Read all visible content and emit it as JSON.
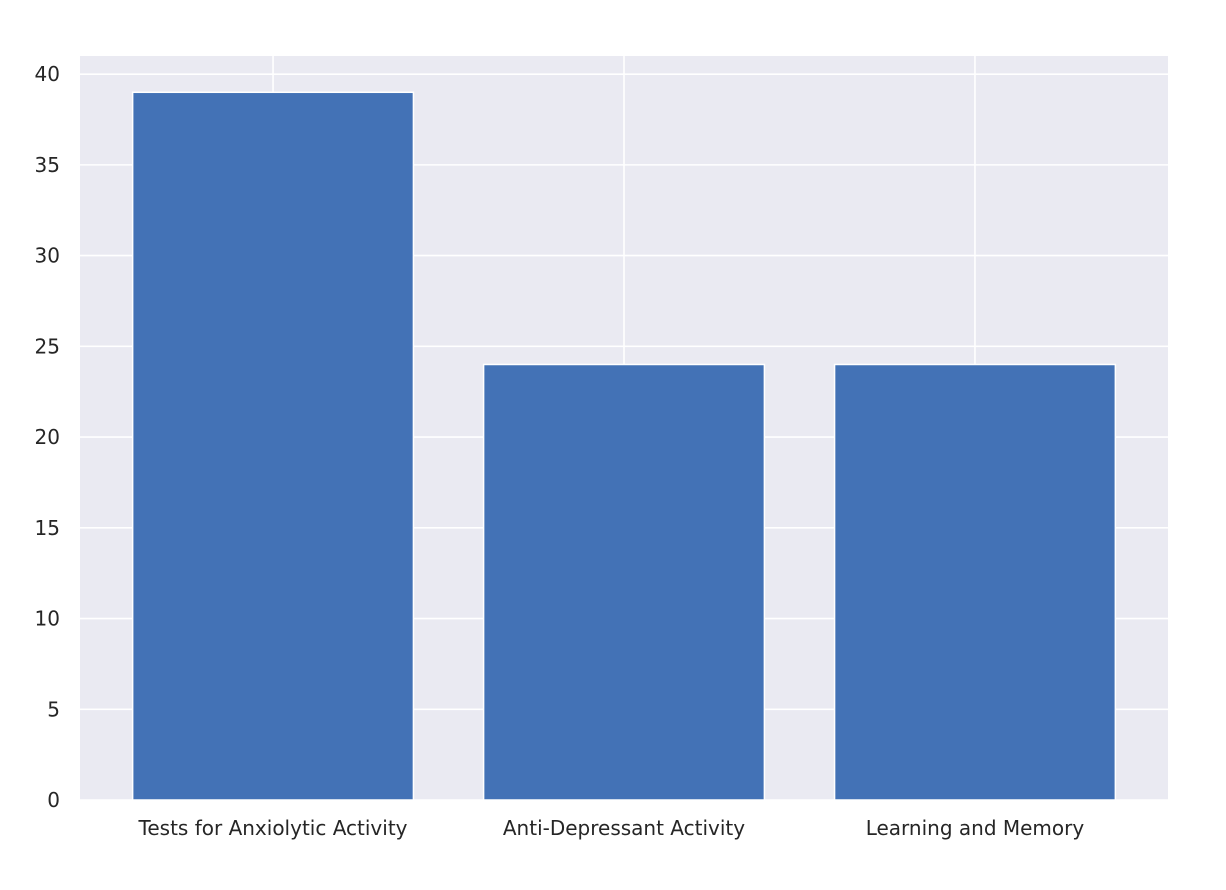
{
  "chart_data": {
    "type": "bar",
    "categories": [
      "Tests for Anxiolytic Activity",
      "Anti-Depressant Activity",
      "Learning and Memory"
    ],
    "values": [
      39,
      24,
      24
    ],
    "title": "",
    "xlabel": "",
    "ylabel": "",
    "ylim": [
      0,
      41
    ],
    "yticks": [
      0,
      5,
      10,
      15,
      20,
      25,
      30,
      35,
      40
    ],
    "grid": true,
    "legend": "none",
    "colors": {
      "bar": "#4372b6",
      "plot_background": "#eaeaf2",
      "grid": "#ffffff",
      "text": "#262626"
    }
  }
}
